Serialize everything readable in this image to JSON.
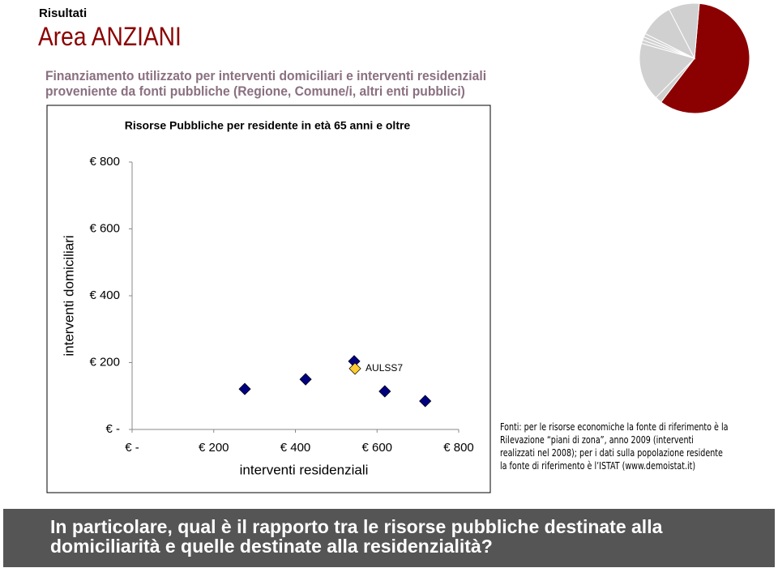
{
  "header": {
    "section": "Risultati",
    "title": "Area ANZIANI",
    "subtitle_1": "Finanziamento utilizzato per interventi domiciliari e interventi residenziali",
    "subtitle_2": "proveniente da fonti pubbliche (Regione, Comune/i, altri enti pubblici)"
  },
  "chart_data": [
    {
      "type": "scatter",
      "title": "Risorse Pubbliche per residente in età 65 anni e oltre",
      "x_label": "interventi residenziali",
      "y_label": "interventi domiciliari",
      "xlim": [
        0,
        800
      ],
      "ylim": [
        0,
        800
      ],
      "xticks": [
        {
          "value": 0,
          "label": "€ -"
        },
        {
          "value": 200,
          "label": "€ 200"
        },
        {
          "value": 400,
          "label": "€ 400"
        },
        {
          "value": 600,
          "label": "€ 600"
        },
        {
          "value": 800,
          "label": "€ 800"
        }
      ],
      "yticks": [
        {
          "value": 0,
          "label": "€ -"
        },
        {
          "value": 200,
          "label": "€ 200"
        },
        {
          "value": 400,
          "label": "€ 400"
        },
        {
          "value": 600,
          "label": "€ 600"
        },
        {
          "value": 800,
          "label": "€ 800"
        }
      ],
      "series": [
        {
          "color": "#000080",
          "x": [
            276,
            425,
            544,
            619,
            718
          ],
          "values": [
            121,
            150,
            204,
            114,
            85
          ]
        },
        {
          "name": "AULSS7",
          "color": "#ffcc33",
          "x": [
            546
          ],
          "values": [
            182
          ]
        }
      ]
    },
    {
      "type": "pie",
      "values": [
        59,
        2,
        17,
        1,
        1,
        1,
        10,
        9
      ],
      "colors": [
        "#8b0000",
        "#d0d0d0",
        "#d0d0d0",
        "#d0d0d0",
        "#d0d0d0",
        "#d0d0d0",
        "#d0d0d0",
        "#d0d0d0"
      ]
    }
  ],
  "notes": "Fonti: per le risorse economiche la fonte di riferimento è la Rilevazione “piani di zona”, anno 2009 (interventi realizzati nel 2008); per i dati sulla popolazione residente la fonte di riferimento è l’ISTAT (www.demoistat.it)",
  "footer": "In particolare, qual è il rapporto tra le risorse pubbliche destinate alla domiciliarità e quelle destinate alla residenzialità?"
}
